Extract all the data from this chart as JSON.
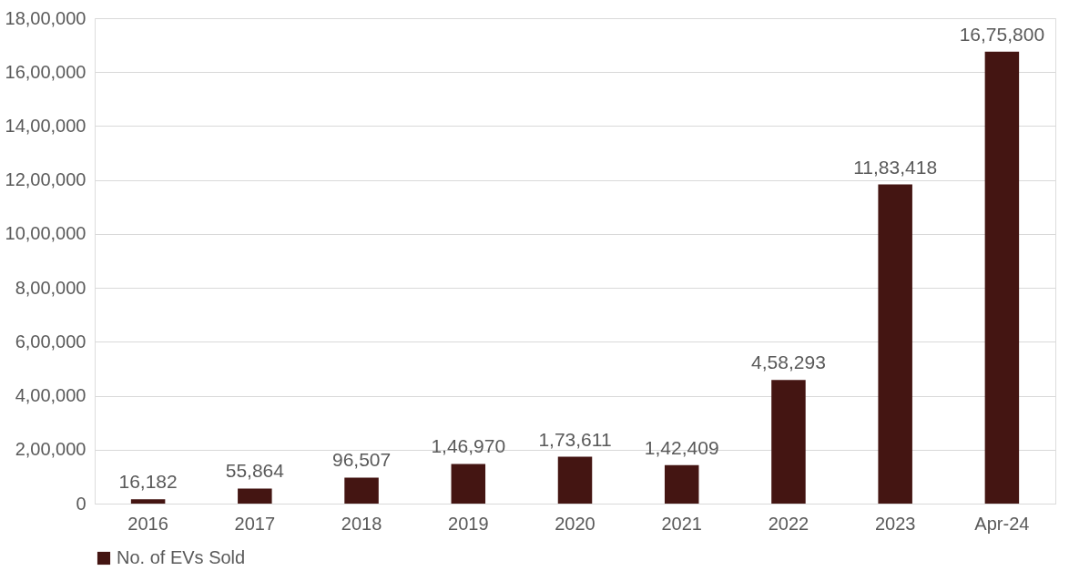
{
  "chart_data": {
    "type": "bar",
    "categories": [
      "2016",
      "2017",
      "2018",
      "2019",
      "2020",
      "2021",
      "2022",
      "2023",
      "Apr-24"
    ],
    "series": [
      {
        "name": "No. of EVs Sold",
        "color": "#441512",
        "values": [
          16182,
          55864,
          96507,
          146970,
          173611,
          142409,
          458293,
          1183418,
          1675800
        ],
        "value_labels": [
          "16,182",
          "55,864",
          "96,507",
          "1,46,970",
          "1,73,611",
          "1,42,409",
          "4,58,293",
          "11,83,418",
          "16,75,800"
        ]
      }
    ],
    "ylim": [
      0,
      1800000
    ],
    "yticks": [
      0,
      {
        "value": 200000,
        "label": "2,00,000"
      },
      {
        "value": 400000,
        "label": "4,00,000"
      },
      {
        "value": 600000,
        "label": "6,00,000"
      },
      {
        "value": 800000,
        "label": "8,00,000"
      },
      {
        "value": 1000000,
        "label": "10,00,000"
      },
      {
        "value": 1200000,
        "label": "12,00,000"
      },
      {
        "value": 1400000,
        "label": "14,00,000"
      },
      {
        "value": 1600000,
        "label": "16,00,000"
      },
      {
        "value": 1800000,
        "label": "18,00,000"
      }
    ],
    "grid": "y",
    "legend": "bottom"
  }
}
